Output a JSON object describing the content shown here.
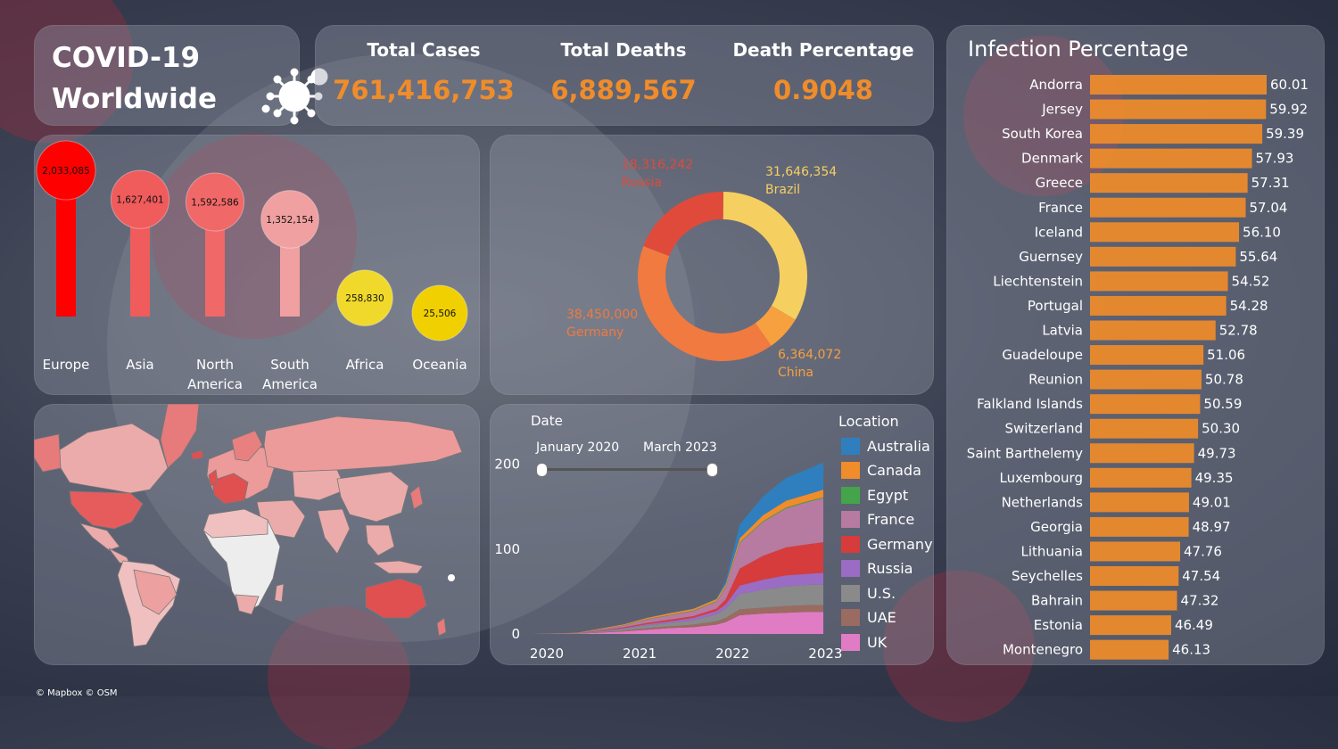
{
  "title": {
    "line1": "COVID-19",
    "line2": "Worldwide"
  },
  "kpis": [
    {
      "label": "Total Cases",
      "value": "761,416,753"
    },
    {
      "label": "Total Deaths",
      "value": "6,889,567"
    },
    {
      "label": "Death Percentage",
      "value": "0.9048"
    }
  ],
  "footer": "© Mapbox © OSM",
  "chart_data": [
    {
      "type": "bar",
      "categories": [
        "Europe",
        "Asia",
        "North America",
        "South America",
        "Africa",
        "Oceania"
      ],
      "values": [
        2033085,
        1627401,
        1592586,
        1352154,
        258830,
        25506
      ],
      "value_labels": [
        "2,033,085",
        "1,627,401",
        "1,592,586",
        "1,352,154",
        "258,830",
        "25,506"
      ],
      "colors": [
        "#ff0000",
        "#f05b5b",
        "#f06868",
        "#f0a0a0",
        "#f0d92a",
        "#f0d000"
      ]
    },
    {
      "type": "pie",
      "slices": [
        {
          "label": "Brazil",
          "value": 31646354,
          "value_label": "31,646,354",
          "color": "#f5d060"
        },
        {
          "label": "China",
          "value": 6364072,
          "value_label": "6,364,072",
          "color": "#f7a040"
        },
        {
          "label": "Germany",
          "value": 38450000,
          "value_label": "38,450,000",
          "color": "#f07a40"
        },
        {
          "label": "Russia",
          "value": 18316242,
          "value_label": "18,316,242",
          "color": "#e04a3a"
        }
      ]
    },
    {
      "type": "area",
      "x_label": "Date",
      "slider_start": "January 2020",
      "slider_end": "March 2023",
      "x_ticks": [
        "2020",
        "2021",
        "2022",
        "2023"
      ],
      "y_ticks": [
        0,
        100,
        200
      ],
      "x": [
        2020.0,
        2020.5,
        2021.0,
        2021.25,
        2021.5,
        2021.75,
        2022.0,
        2022.1,
        2022.25,
        2022.5,
        2022.75,
        2023.0,
        2023.15
      ],
      "legend_title": "Location",
      "series": [
        {
          "name": "UK",
          "color": "#e07cc4",
          "values": [
            0,
            0.3,
            3,
            5,
            7,
            8,
            11,
            14,
            22,
            24,
            25,
            26,
            26
          ]
        },
        {
          "name": "UAE",
          "color": "#9a6b60",
          "values": [
            0,
            0,
            1,
            2,
            2,
            3,
            4,
            5,
            7,
            7,
            8,
            8,
            8
          ]
        },
        {
          "name": "U.S.",
          "color": "#8a8a8a",
          "values": [
            0,
            0.3,
            2,
            3,
            4,
            5,
            8,
            11,
            18,
            21,
            23,
            24,
            24
          ]
        },
        {
          "name": "Russia",
          "color": "#9b6cc4",
          "values": [
            0,
            0,
            1,
            1.5,
            2,
            3,
            4,
            5,
            10,
            12,
            13,
            13,
            14
          ]
        },
        {
          "name": "Germany",
          "color": "#d63c3c",
          "values": [
            0,
            0,
            1,
            1.5,
            2,
            2,
            3,
            6,
            20,
            28,
            33,
            35,
            36
          ]
        },
        {
          "name": "France",
          "color": "#b77aa0",
          "values": [
            0,
            0.5,
            2,
            4,
            5,
            6,
            8,
            14,
            30,
            40,
            46,
            50,
            52
          ]
        },
        {
          "name": "Egypt",
          "color": "#44a44a",
          "values": [
            0,
            0,
            0.3,
            0.4,
            0.5,
            0.6,
            0.6,
            0.7,
            0.8,
            0.9,
            1,
            1,
            1
          ]
        },
        {
          "name": "Canada",
          "color": "#f08c2a",
          "values": [
            0,
            0.3,
            1,
            1.5,
            2,
            2,
            2.5,
            3,
            5,
            7,
            8,
            8,
            9
          ]
        },
        {
          "name": "Australia",
          "color": "#2f7fbf",
          "values": [
            0,
            0,
            0.2,
            0.2,
            0.3,
            0.3,
            0.5,
            4,
            16,
            22,
            27,
            30,
            32
          ]
        }
      ]
    },
    {
      "type": "bar",
      "title": "Infection Percentage",
      "categories": [
        "Andorra",
        "Jersey",
        "South Korea",
        "Denmark",
        "Greece",
        "France",
        "Iceland",
        "Guernsey",
        "Liechtenstein",
        "Portugal",
        "Latvia",
        "Guadeloupe",
        "Reunion",
        "Falkland Islands",
        "Switzerland",
        "Saint Barthelemy",
        "Luxembourg",
        "Netherlands",
        "Georgia",
        "Lithuania",
        "Seychelles",
        "Bahrain",
        "Estonia",
        "Montenegro"
      ],
      "values": [
        60.01,
        59.92,
        59.39,
        57.93,
        57.31,
        57.04,
        56.1,
        55.64,
        54.52,
        54.28,
        52.78,
        51.06,
        50.78,
        50.59,
        50.3,
        49.73,
        49.35,
        49.01,
        48.97,
        47.76,
        47.54,
        47.32,
        46.49,
        46.13
      ],
      "value_labels": [
        "60.01",
        "59.92",
        "59.39",
        "57.93",
        "57.31",
        "57.04",
        "56.10",
        "55.64",
        "54.52",
        "54.28",
        "52.78",
        "51.06",
        "50.78",
        "50.59",
        "50.30",
        "49.73",
        "49.35",
        "49.01",
        "48.97",
        "47.76",
        "47.54",
        "47.32",
        "46.49",
        "46.13"
      ],
      "color": "#f08c2a"
    }
  ]
}
